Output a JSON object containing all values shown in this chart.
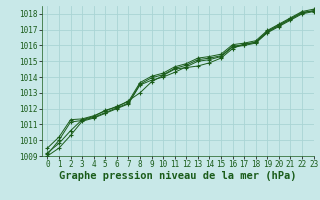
{
  "xlabel": "Graphe pression niveau de la mer (hPa)",
  "xlim": [
    -0.5,
    23
  ],
  "ylim": [
    1009,
    1018.5
  ],
  "xticks": [
    0,
    1,
    2,
    3,
    4,
    5,
    6,
    7,
    8,
    9,
    10,
    11,
    12,
    13,
    14,
    15,
    16,
    17,
    18,
    19,
    20,
    21,
    22,
    23
  ],
  "yticks": [
    1009,
    1010,
    1011,
    1012,
    1013,
    1014,
    1015,
    1016,
    1017,
    1018
  ],
  "bg_color": "#c8e8e8",
  "grid_color": "#aad4d4",
  "line_color": "#1a5c1a",
  "marker_color": "#1a5c1a",
  "series": [
    [
      1009.2,
      1009.8,
      1010.6,
      1011.3,
      1011.5,
      1011.9,
      1012.1,
      1012.5,
      1013.0,
      1013.7,
      1014.1,
      1014.5,
      1014.6,
      1014.7,
      1014.9,
      1015.2,
      1015.8,
      1016.1,
      1016.2,
      1016.9,
      1017.3,
      1017.7,
      1018.1,
      1018.2
    ],
    [
      1009.0,
      1009.5,
      1010.3,
      1011.2,
      1011.4,
      1011.7,
      1012.0,
      1012.3,
      1013.5,
      1013.8,
      1014.0,
      1014.3,
      1014.65,
      1015.0,
      1015.1,
      1015.3,
      1015.9,
      1016.0,
      1016.15,
      1016.8,
      1017.2,
      1017.6,
      1018.0,
      1018.15
    ],
    [
      1009.1,
      1010.0,
      1011.15,
      1011.25,
      1011.45,
      1011.75,
      1012.05,
      1012.35,
      1013.55,
      1013.95,
      1014.15,
      1014.55,
      1014.75,
      1015.1,
      1015.2,
      1015.35,
      1015.95,
      1016.05,
      1016.2,
      1016.85,
      1017.25,
      1017.65,
      1018.05,
      1018.2
    ],
    [
      1009.5,
      1010.2,
      1011.3,
      1011.35,
      1011.55,
      1011.85,
      1012.15,
      1012.45,
      1013.65,
      1014.05,
      1014.25,
      1014.65,
      1014.85,
      1015.2,
      1015.3,
      1015.45,
      1016.05,
      1016.15,
      1016.3,
      1016.95,
      1017.35,
      1017.75,
      1018.15,
      1018.3
    ]
  ],
  "font_color": "#1a5c1a",
  "label_fontsize": 6.5,
  "tick_fontsize": 5.5,
  "xlabel_fontsize": 7.5
}
